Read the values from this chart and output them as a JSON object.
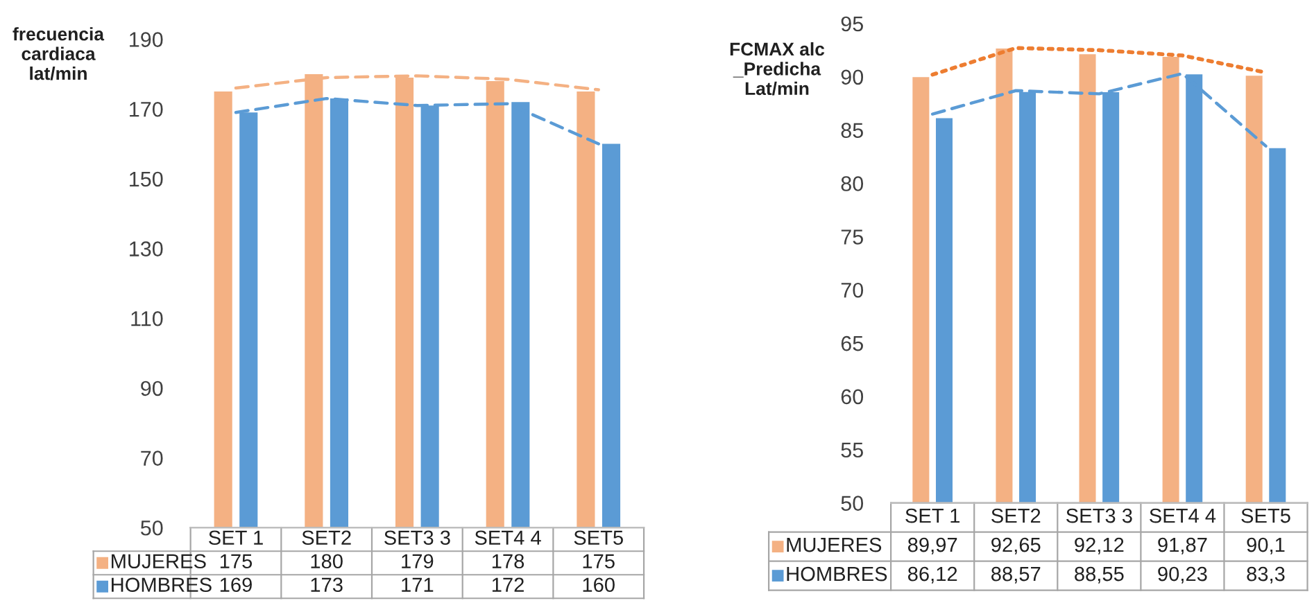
{
  "chart_data": [
    {
      "type": "bar",
      "ylabel": "frecuencia\ncardiaca\nlat/min",
      "categories": [
        "SET 1",
        "SET2",
        "SET3 3",
        "SET4 4",
        "SET5"
      ],
      "ylim": [
        50,
        190
      ],
      "yticks": [
        50,
        70,
        90,
        110,
        130,
        150,
        170,
        190
      ],
      "grid": false,
      "legend": "bottom",
      "series": [
        {
          "name": "MUJERES",
          "color": "#f4b183",
          "values": [
            175,
            180,
            179,
            178,
            175
          ],
          "value_labels": [
            "175",
            "180",
            "179",
            "178",
            "175"
          ]
        },
        {
          "name": "HOMBRES",
          "color": "#5b9bd5",
          "values": [
            169,
            173,
            171,
            172,
            160
          ],
          "value_labels": [
            "169",
            "173",
            "171",
            "172",
            "160"
          ]
        },
        {
          "type": "line",
          "color": "#f4b183",
          "line_style": "dashed",
          "values": [
            176,
            179,
            179.5,
            178.5,
            175.5
          ]
        },
        {
          "type": "line",
          "color": "#5b9bd5",
          "line_style": "dashed",
          "values": [
            169,
            173,
            171,
            171.5,
            160
          ]
        }
      ]
    },
    {
      "type": "bar",
      "ylabel": "FCMAX alc\n_Predicha\nLat/min",
      "categories": [
        "SET 1",
        "SET2",
        "SET3 3",
        "SET4 4",
        "SET5"
      ],
      "ylim": [
        50,
        95
      ],
      "yticks": [
        50,
        55,
        60,
        65,
        70,
        75,
        80,
        85,
        90,
        95
      ],
      "grid": false,
      "legend": "bottom",
      "series": [
        {
          "name": "MUJERES",
          "color": "#f4b183",
          "values": [
            89.97,
            92.65,
            92.12,
            91.87,
            90.1
          ],
          "value_labels": [
            "89,97",
            "92,65",
            "92,12",
            "91,87",
            "90,1"
          ]
        },
        {
          "name": "HOMBRES",
          "color": "#5b9bd5",
          "values": [
            86.12,
            88.57,
            88.55,
            90.23,
            83.3
          ],
          "value_labels": [
            "86,12",
            "88,57",
            "88,55",
            "90,23",
            "83,3"
          ]
        },
        {
          "type": "line",
          "color": "#ed7d31",
          "line_style": "dotted",
          "values": [
            90.2,
            92.7,
            92.5,
            92,
            90.4
          ]
        },
        {
          "type": "line",
          "color": "#5b9bd5",
          "line_style": "dashed",
          "values": [
            86.5,
            88.7,
            88.4,
            90.3,
            83.5
          ]
        }
      ]
    }
  ]
}
